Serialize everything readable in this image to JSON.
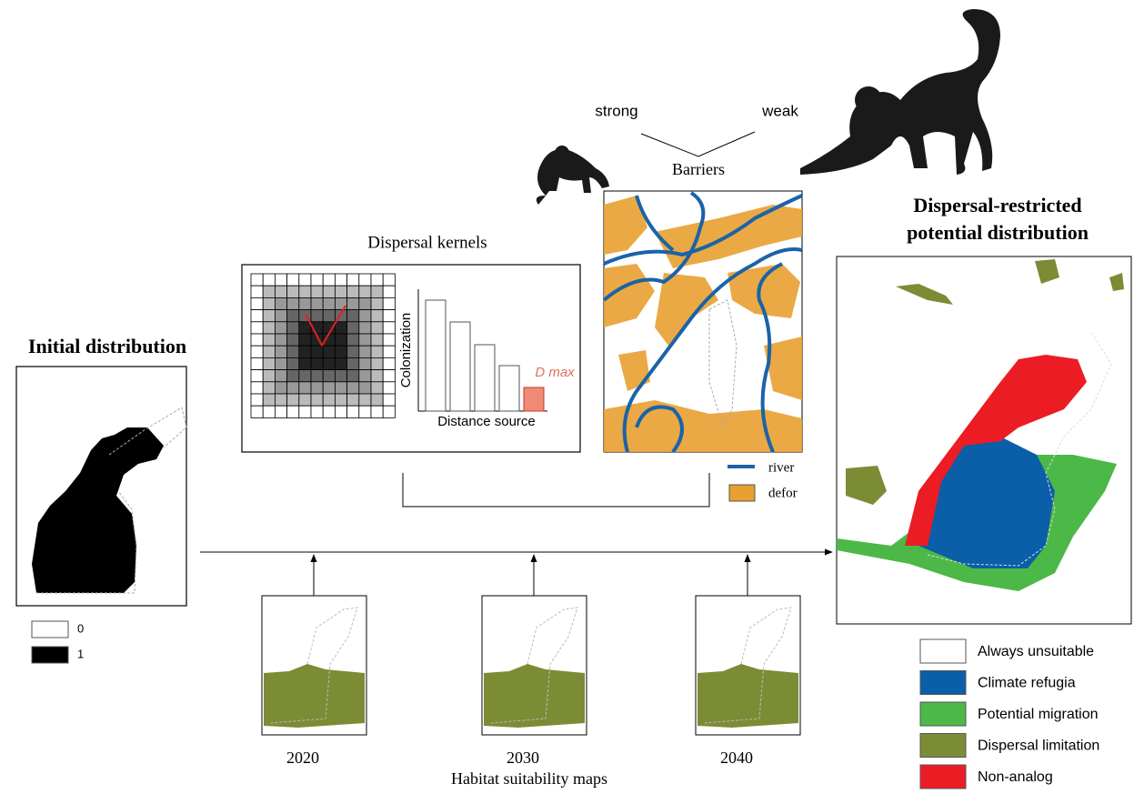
{
  "initial": {
    "title": "Initial distribution",
    "legend": [
      {
        "label": "0",
        "color": "#ffffff"
      },
      {
        "label": "1",
        "color": "#000000"
      }
    ]
  },
  "kernels": {
    "title": "Dispersal kernels",
    "y_label": "Colonization",
    "x_label": "Distance source",
    "dmax_label": "D max"
  },
  "barriers": {
    "title": "Barriers",
    "strong": "strong",
    "weak": "weak",
    "legend": {
      "river": "river",
      "defor": "defor"
    }
  },
  "habitat": {
    "title": "Habitat suitability maps",
    "years": [
      "2020",
      "2030",
      "2040"
    ]
  },
  "result": {
    "title_lines": [
      "Dispersal-restricted",
      "potential distribution"
    ],
    "legend": [
      {
        "label": "Always unsuitable",
        "color": "#ffffff"
      },
      {
        "label": "Climate refugia",
        "color": "#0b5ea8"
      },
      {
        "label": "Potential migration",
        "color": "#4cb848"
      },
      {
        "label": "Dispersal limitation",
        "color": "#7b8c35"
      },
      {
        "label": "Non-analog",
        "color": "#ec1c24"
      }
    ]
  }
}
